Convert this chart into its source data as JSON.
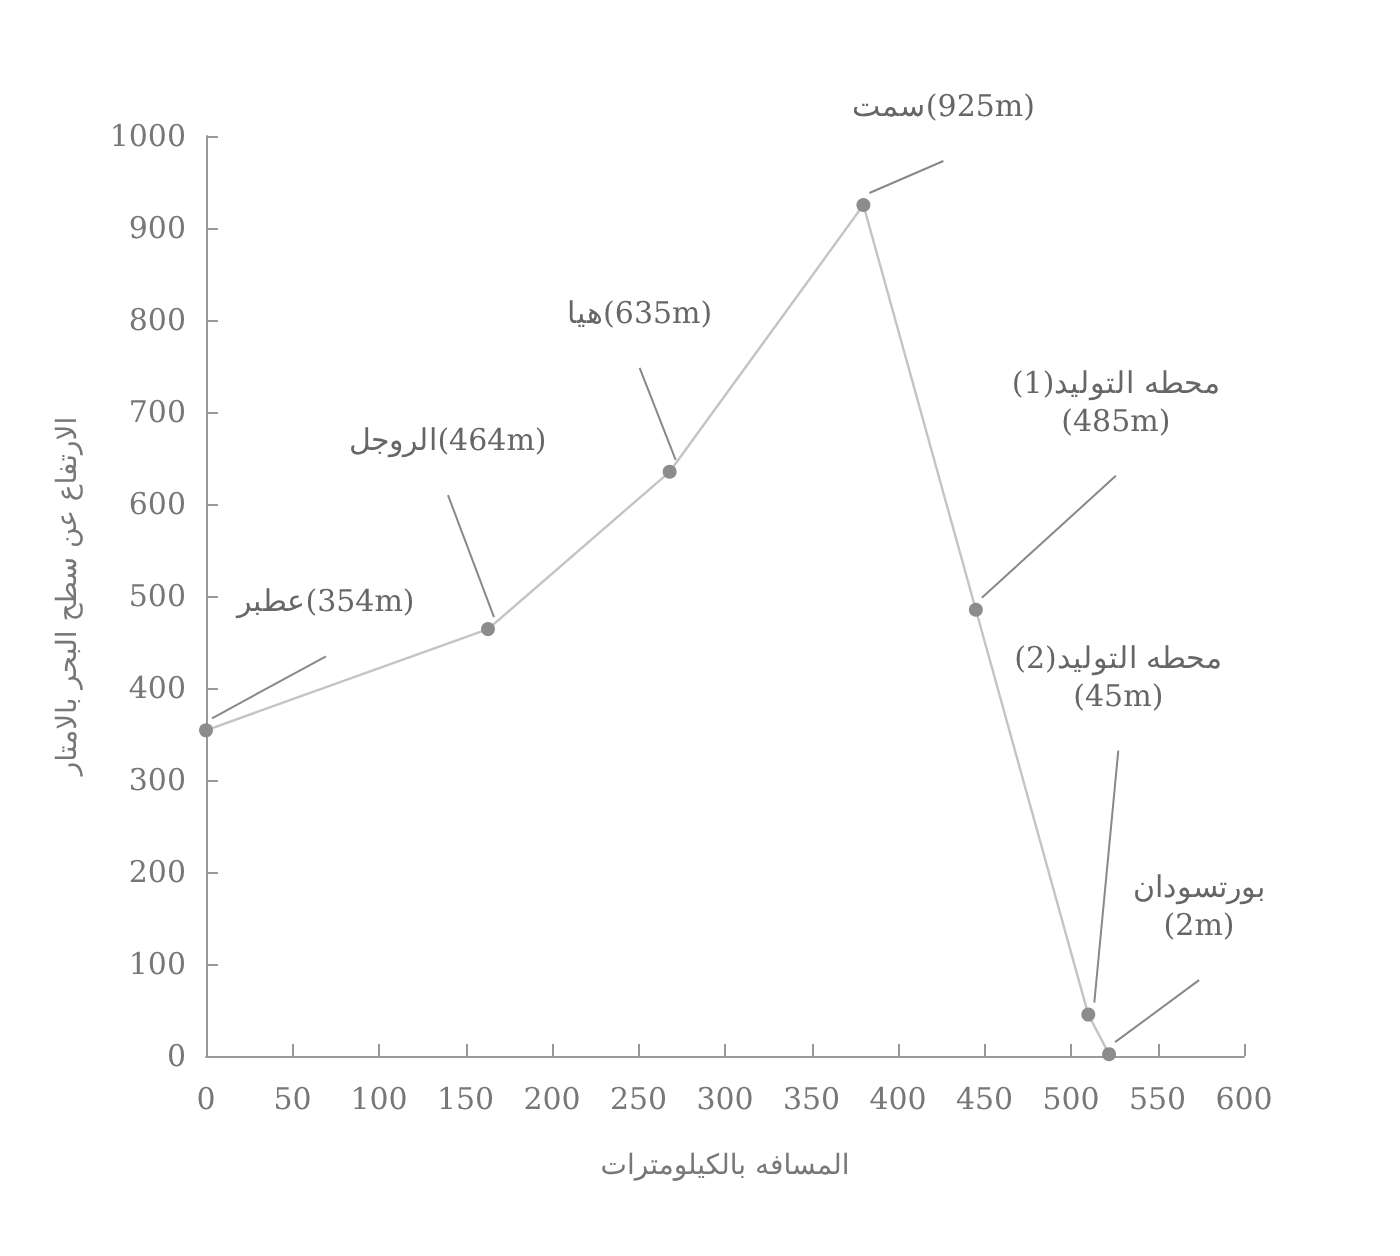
{
  "chart_data": {
    "type": "line",
    "xlabel": "المسافه بالكيلومترات",
    "ylabel": "الارتفاع عن سطح البحر بالامتار",
    "x": [
      0,
      163,
      268,
      380,
      445,
      510,
      522
    ],
    "series": [
      {
        "color": "#8c8c8c",
        "values": [
          354,
          464,
          635,
          925,
          485,
          45,
          2
        ]
      }
    ],
    "xlim": [
      0,
      600
    ],
    "xticks": [
      0,
      50,
      100,
      150,
      200,
      250,
      300,
      350,
      400,
      450,
      500,
      550,
      600
    ],
    "ylim": [
      0,
      1000
    ],
    "yticks": [
      0,
      100,
      200,
      300,
      400,
      500,
      600,
      700,
      800,
      900,
      1000
    ],
    "grid": false,
    "marker": "circle",
    "line_style": "solid",
    "annotations": [
      {
        "text": "عطبر(354m)",
        "x": 0,
        "y": 354
      },
      {
        "text": "الروجل(464m)",
        "x": 163,
        "y": 464
      },
      {
        "text": "هيا(635m)",
        "x": 268,
        "y": 635
      },
      {
        "text": "سمت(925m)",
        "x": 380,
        "y": 925
      },
      {
        "text": "محطه التوليد(1)\n(485m)",
        "x": 445,
        "y": 485
      },
      {
        "text": "محطه التوليد(2)\n(45m)",
        "x": 510,
        "y": 45
      },
      {
        "text": "بورتسودان\n(2m)",
        "x": 522,
        "y": 2
      }
    ]
  }
}
